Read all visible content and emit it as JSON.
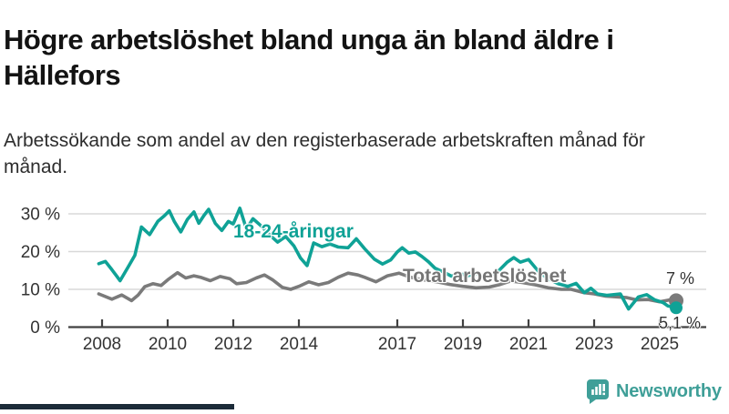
{
  "header": {
    "title": "Högre arbetslöshet bland unga än bland äldre i Hällefors",
    "subtitle": "Arbetssökande som andel av den registerbaserade arbetskraften månad för månad."
  },
  "chart_data": {
    "type": "line",
    "title": "Högre arbetslöshet bland unga än bland äldre i Hällefors",
    "unit": "%",
    "grid": true,
    "legend_position": "inline-labels",
    "x_axis": {
      "ticks": [
        2008,
        2010,
        2012,
        2014,
        2017,
        2019,
        2021,
        2023,
        2025
      ],
      "labels": [
        "2008",
        "2010",
        "2012",
        "2014",
        "2017",
        "2019",
        "2021",
        "2023",
        "2025"
      ],
      "range": [
        2007.9,
        2025.9
      ]
    },
    "y_axis": {
      "ticks": [
        0,
        10,
        20,
        30
      ],
      "labels": [
        "0 %",
        "10 %",
        "20 %",
        "30 %"
      ],
      "range": [
        0,
        33
      ]
    },
    "series": [
      {
        "id": "total-unemployment",
        "name": "Total arbetslöshet",
        "color": "#7a7a7a",
        "end_label": "7 %",
        "end_value": 7.0,
        "dot_r": 8,
        "points": [
          [
            2007.9,
            8.8
          ],
          [
            2008.3,
            7.4
          ],
          [
            2008.6,
            8.5
          ],
          [
            2008.9,
            7.0
          ],
          [
            2009.1,
            8.5
          ],
          [
            2009.3,
            10.7
          ],
          [
            2009.55,
            11.5
          ],
          [
            2009.8,
            11.0
          ],
          [
            2010.0,
            12.5
          ],
          [
            2010.3,
            14.4
          ],
          [
            2010.55,
            13.0
          ],
          [
            2010.8,
            13.6
          ],
          [
            2011.0,
            13.2
          ],
          [
            2011.3,
            12.3
          ],
          [
            2011.6,
            13.4
          ],
          [
            2011.9,
            12.8
          ],
          [
            2012.1,
            11.5
          ],
          [
            2012.4,
            11.8
          ],
          [
            2012.7,
            13.0
          ],
          [
            2012.95,
            13.8
          ],
          [
            2013.2,
            12.5
          ],
          [
            2013.5,
            10.5
          ],
          [
            2013.75,
            10.0
          ],
          [
            2014.0,
            10.8
          ],
          [
            2014.3,
            12.0
          ],
          [
            2014.6,
            11.2
          ],
          [
            2014.9,
            11.8
          ],
          [
            2015.2,
            13.2
          ],
          [
            2015.5,
            14.3
          ],
          [
            2015.8,
            13.8
          ],
          [
            2016.0,
            13.2
          ],
          [
            2016.35,
            12.0
          ],
          [
            2016.7,
            13.6
          ],
          [
            2017.05,
            14.3
          ],
          [
            2017.4,
            13.2
          ],
          [
            2017.8,
            12.5
          ],
          [
            2018.2,
            12.0
          ],
          [
            2018.6,
            11.3
          ],
          [
            2019.0,
            10.8
          ],
          [
            2019.4,
            10.4
          ],
          [
            2019.8,
            10.6
          ],
          [
            2020.1,
            11.2
          ],
          [
            2020.45,
            12.2
          ],
          [
            2020.8,
            11.8
          ],
          [
            2021.2,
            11.2
          ],
          [
            2021.6,
            10.4
          ],
          [
            2022.0,
            10.0
          ],
          [
            2022.3,
            10.0
          ],
          [
            2022.7,
            9.1
          ],
          [
            2023.0,
            8.8
          ],
          [
            2023.35,
            8.2
          ],
          [
            2023.7,
            8.0
          ],
          [
            2024.0,
            7.8
          ],
          [
            2024.3,
            7.2
          ],
          [
            2024.65,
            7.3
          ],
          [
            2025.0,
            6.7
          ],
          [
            2025.3,
            7.2
          ],
          [
            2025.5,
            7.0
          ]
        ]
      },
      {
        "id": "youth-18-24",
        "name": "18-24-åringar",
        "color": "#0fa296",
        "end_label": "5,1 %",
        "end_value": 5.1,
        "dot_r": 7,
        "points": [
          [
            2007.9,
            16.8
          ],
          [
            2008.1,
            17.4
          ],
          [
            2008.3,
            15.2
          ],
          [
            2008.55,
            12.3
          ],
          [
            2008.8,
            16.0
          ],
          [
            2009.0,
            19.0
          ],
          [
            2009.2,
            26.5
          ],
          [
            2009.45,
            24.5
          ],
          [
            2009.7,
            28.0
          ],
          [
            2009.9,
            29.5
          ],
          [
            2010.05,
            30.8
          ],
          [
            2010.2,
            28.0
          ],
          [
            2010.4,
            25.2
          ],
          [
            2010.6,
            28.5
          ],
          [
            2010.8,
            30.5
          ],
          [
            2010.95,
            27.5
          ],
          [
            2011.1,
            29.5
          ],
          [
            2011.25,
            31.2
          ],
          [
            2011.45,
            27.5
          ],
          [
            2011.65,
            25.6
          ],
          [
            2011.85,
            28.0
          ],
          [
            2012.0,
            27.3
          ],
          [
            2012.2,
            31.5
          ],
          [
            2012.4,
            26.0
          ],
          [
            2012.6,
            28.7
          ],
          [
            2012.85,
            26.8
          ],
          [
            2013.1,
            24.5
          ],
          [
            2013.35,
            22.5
          ],
          [
            2013.6,
            24.0
          ],
          [
            2013.85,
            21.5
          ],
          [
            2014.05,
            18.3
          ],
          [
            2014.25,
            16.3
          ],
          [
            2014.45,
            22.3
          ],
          [
            2014.7,
            21.3
          ],
          [
            2014.95,
            22.0
          ],
          [
            2015.2,
            21.2
          ],
          [
            2015.5,
            21.0
          ],
          [
            2015.75,
            23.4
          ],
          [
            2016.0,
            20.8
          ],
          [
            2016.3,
            18.0
          ],
          [
            2016.55,
            16.7
          ],
          [
            2016.8,
            17.8
          ],
          [
            2017.0,
            19.9
          ],
          [
            2017.15,
            21.0
          ],
          [
            2017.35,
            19.6
          ],
          [
            2017.55,
            19.9
          ],
          [
            2017.75,
            18.7
          ],
          [
            2017.95,
            17.3
          ],
          [
            2018.15,
            15.6
          ],
          [
            2018.4,
            14.6
          ],
          [
            2018.65,
            13.5
          ],
          [
            2018.9,
            14.2
          ],
          [
            2019.15,
            13.6
          ],
          [
            2019.4,
            14.3
          ],
          [
            2019.65,
            13.2
          ],
          [
            2019.9,
            14.0
          ],
          [
            2020.1,
            15.0
          ],
          [
            2020.35,
            17.2
          ],
          [
            2020.55,
            18.4
          ],
          [
            2020.75,
            17.2
          ],
          [
            2021.0,
            17.9
          ],
          [
            2021.3,
            14.8
          ],
          [
            2021.6,
            12.8
          ],
          [
            2021.9,
            11.5
          ],
          [
            2022.2,
            10.8
          ],
          [
            2022.45,
            11.6
          ],
          [
            2022.7,
            9.1
          ],
          [
            2022.9,
            10.3
          ],
          [
            2023.1,
            8.8
          ],
          [
            2023.4,
            8.4
          ],
          [
            2023.8,
            8.8
          ],
          [
            2024.05,
            4.8
          ],
          [
            2024.35,
            8.0
          ],
          [
            2024.6,
            8.6
          ],
          [
            2024.85,
            7.2
          ],
          [
            2025.1,
            6.5
          ],
          [
            2025.25,
            5.6
          ],
          [
            2025.5,
            5.1
          ]
        ]
      }
    ]
  },
  "branding": {
    "name": "Newsworthy",
    "color": "#3f9f98"
  },
  "footer": {
    "bar_color": "#1c2b39"
  }
}
